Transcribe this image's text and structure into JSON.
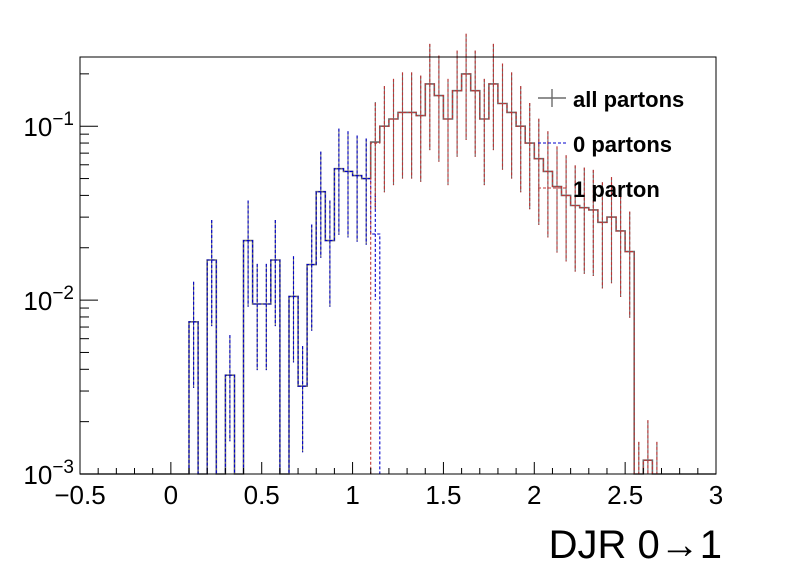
{
  "chart_data": {
    "type": "histogram",
    "title": "",
    "xlabel": "DJR 0→1",
    "ylabel": "",
    "yscale": "log",
    "xlim": [
      -0.5,
      3.0
    ],
    "ylim": [
      0.001,
      0.25
    ],
    "x_ticks": [
      "−0.5",
      "0",
      "0.5",
      "1",
      "1.5",
      "2",
      "2.5",
      "3"
    ],
    "x_tick_values": [
      -0.5,
      0,
      0.5,
      1,
      1.5,
      2,
      2.5,
      3
    ],
    "y_ticks": [
      {
        "value": 0.001,
        "base": "10",
        "exp": "−3"
      },
      {
        "value": 0.01,
        "base": "10",
        "exp": "−2"
      },
      {
        "value": 0.1,
        "base": "10",
        "exp": "−1"
      }
    ],
    "bin_width": 0.05,
    "grid": false,
    "legend_position": "top-right",
    "colors": {
      "all": "#6b6b6b",
      "zero": "#0000cc",
      "one": "#c03434"
    },
    "series": [
      {
        "name": "all partons",
        "key": "all",
        "style": "solid",
        "bins": [
          [
            0.1,
            0.0075
          ],
          [
            0.2,
            0.017
          ],
          [
            0.3,
            0.0037
          ],
          [
            0.4,
            0.022
          ],
          [
            0.45,
            0.0095
          ],
          [
            0.5,
            0.0095
          ],
          [
            0.55,
            0.017
          ],
          [
            0.65,
            0.0105
          ],
          [
            0.7,
            0.0032
          ],
          [
            0.75,
            0.016
          ],
          [
            0.8,
            0.042
          ],
          [
            0.85,
            0.022
          ],
          [
            0.9,
            0.057
          ],
          [
            0.95,
            0.055
          ],
          [
            1.0,
            0.052
          ],
          [
            1.05,
            0.05
          ],
          [
            1.1,
            0.081
          ],
          [
            1.15,
            0.1
          ],
          [
            1.2,
            0.11
          ],
          [
            1.25,
            0.12
          ],
          [
            1.3,
            0.12
          ],
          [
            1.35,
            0.115
          ],
          [
            1.4,
            0.175
          ],
          [
            1.45,
            0.15
          ],
          [
            1.5,
            0.11
          ],
          [
            1.55,
            0.16
          ],
          [
            1.6,
            0.2
          ],
          [
            1.65,
            0.16
          ],
          [
            1.7,
            0.11
          ],
          [
            1.75,
            0.175
          ],
          [
            1.8,
            0.135
          ],
          [
            1.85,
            0.12
          ],
          [
            1.9,
            0.1
          ],
          [
            1.95,
            0.08
          ],
          [
            2.0,
            0.065
          ],
          [
            2.05,
            0.055
          ],
          [
            2.1,
            0.045
          ],
          [
            2.15,
            0.04
          ],
          [
            2.2,
            0.035
          ],
          [
            2.25,
            0.034
          ],
          [
            2.3,
            0.033
          ],
          [
            2.35,
            0.028
          ],
          [
            2.4,
            0.03
          ],
          [
            2.45,
            0.025
          ],
          [
            2.5,
            0.019
          ],
          [
            2.55,
            0.0009
          ],
          [
            2.6,
            0.0012
          ],
          [
            2.65,
            0.0009
          ]
        ]
      },
      {
        "name": "0 partons",
        "key": "zero",
        "style": "dashed",
        "bins": [
          [
            0.1,
            0.0075
          ],
          [
            0.2,
            0.017
          ],
          [
            0.3,
            0.0037
          ],
          [
            0.4,
            0.022
          ],
          [
            0.45,
            0.0095
          ],
          [
            0.5,
            0.0095
          ],
          [
            0.55,
            0.017
          ],
          [
            0.65,
            0.0105
          ],
          [
            0.7,
            0.0032
          ],
          [
            0.75,
            0.016
          ],
          [
            0.8,
            0.042
          ],
          [
            0.85,
            0.022
          ],
          [
            0.9,
            0.057
          ],
          [
            0.95,
            0.055
          ],
          [
            1.0,
            0.052
          ],
          [
            1.05,
            0.05
          ],
          [
            1.1,
            0.024
          ]
        ]
      },
      {
        "name": "1 parton",
        "key": "one",
        "style": "dashed",
        "bins": [
          [
            1.1,
            0.08
          ],
          [
            1.15,
            0.1
          ],
          [
            1.2,
            0.11
          ],
          [
            1.25,
            0.12
          ],
          [
            1.3,
            0.12
          ],
          [
            1.35,
            0.115
          ],
          [
            1.4,
            0.175
          ],
          [
            1.45,
            0.15
          ],
          [
            1.5,
            0.11
          ],
          [
            1.55,
            0.16
          ],
          [
            1.6,
            0.2
          ],
          [
            1.65,
            0.16
          ],
          [
            1.7,
            0.11
          ],
          [
            1.75,
            0.175
          ],
          [
            1.8,
            0.135
          ],
          [
            1.85,
            0.12
          ],
          [
            1.9,
            0.1
          ],
          [
            1.95,
            0.08
          ],
          [
            2.0,
            0.065
          ],
          [
            2.05,
            0.055
          ],
          [
            2.1,
            0.045
          ],
          [
            2.15,
            0.04
          ],
          [
            2.2,
            0.035
          ],
          [
            2.25,
            0.034
          ],
          [
            2.3,
            0.033
          ],
          [
            2.35,
            0.028
          ],
          [
            2.4,
            0.03
          ],
          [
            2.45,
            0.025
          ],
          [
            2.5,
            0.019
          ],
          [
            2.55,
            0.0009
          ],
          [
            2.6,
            0.0012
          ],
          [
            2.65,
            0.0009
          ]
        ]
      }
    ]
  }
}
